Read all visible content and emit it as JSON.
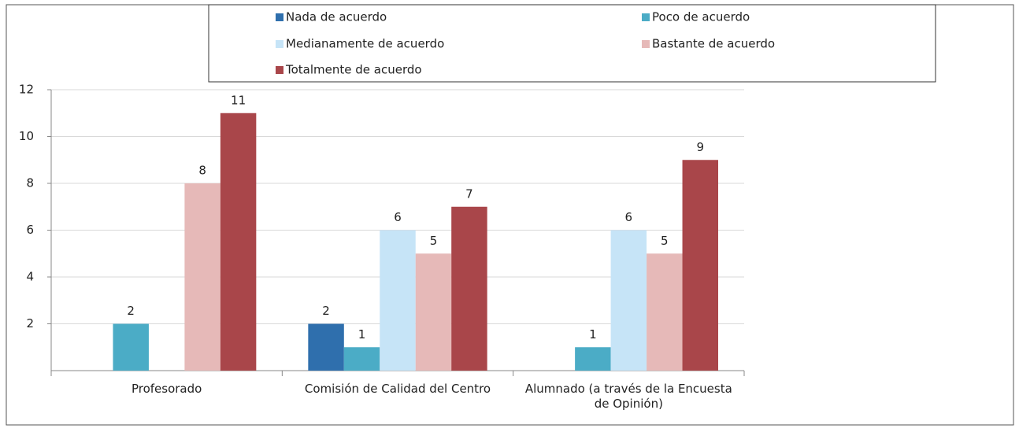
{
  "chart_data": {
    "type": "bar",
    "categories": [
      "Profesorado",
      "Comisión de Calidad del Centro",
      "Alumnado (a través de la Encuesta de Opinión)"
    ],
    "series": [
      {
        "name": "Nada de acuerdo",
        "color": "#2f6fad",
        "values": [
          null,
          2,
          null
        ]
      },
      {
        "name": "Poco de acuerdo",
        "color": "#4bacc6",
        "values": [
          2,
          1,
          1
        ]
      },
      {
        "name": "Medianamente de acuerdo",
        "color": "#c6e4f7",
        "values": [
          null,
          6,
          6
        ]
      },
      {
        "name": "Bastante de acuerdo",
        "color": "#e6b9b8",
        "values": [
          8,
          5,
          5
        ]
      },
      {
        "name": "Totalmente de acuerdo",
        "color": "#a9464a",
        "values": [
          11,
          7,
          9
        ]
      }
    ],
    "ylim": [
      0,
      12
    ],
    "yticks": [
      2,
      4,
      6,
      8,
      10,
      12
    ],
    "grid": true,
    "legend": "top"
  }
}
